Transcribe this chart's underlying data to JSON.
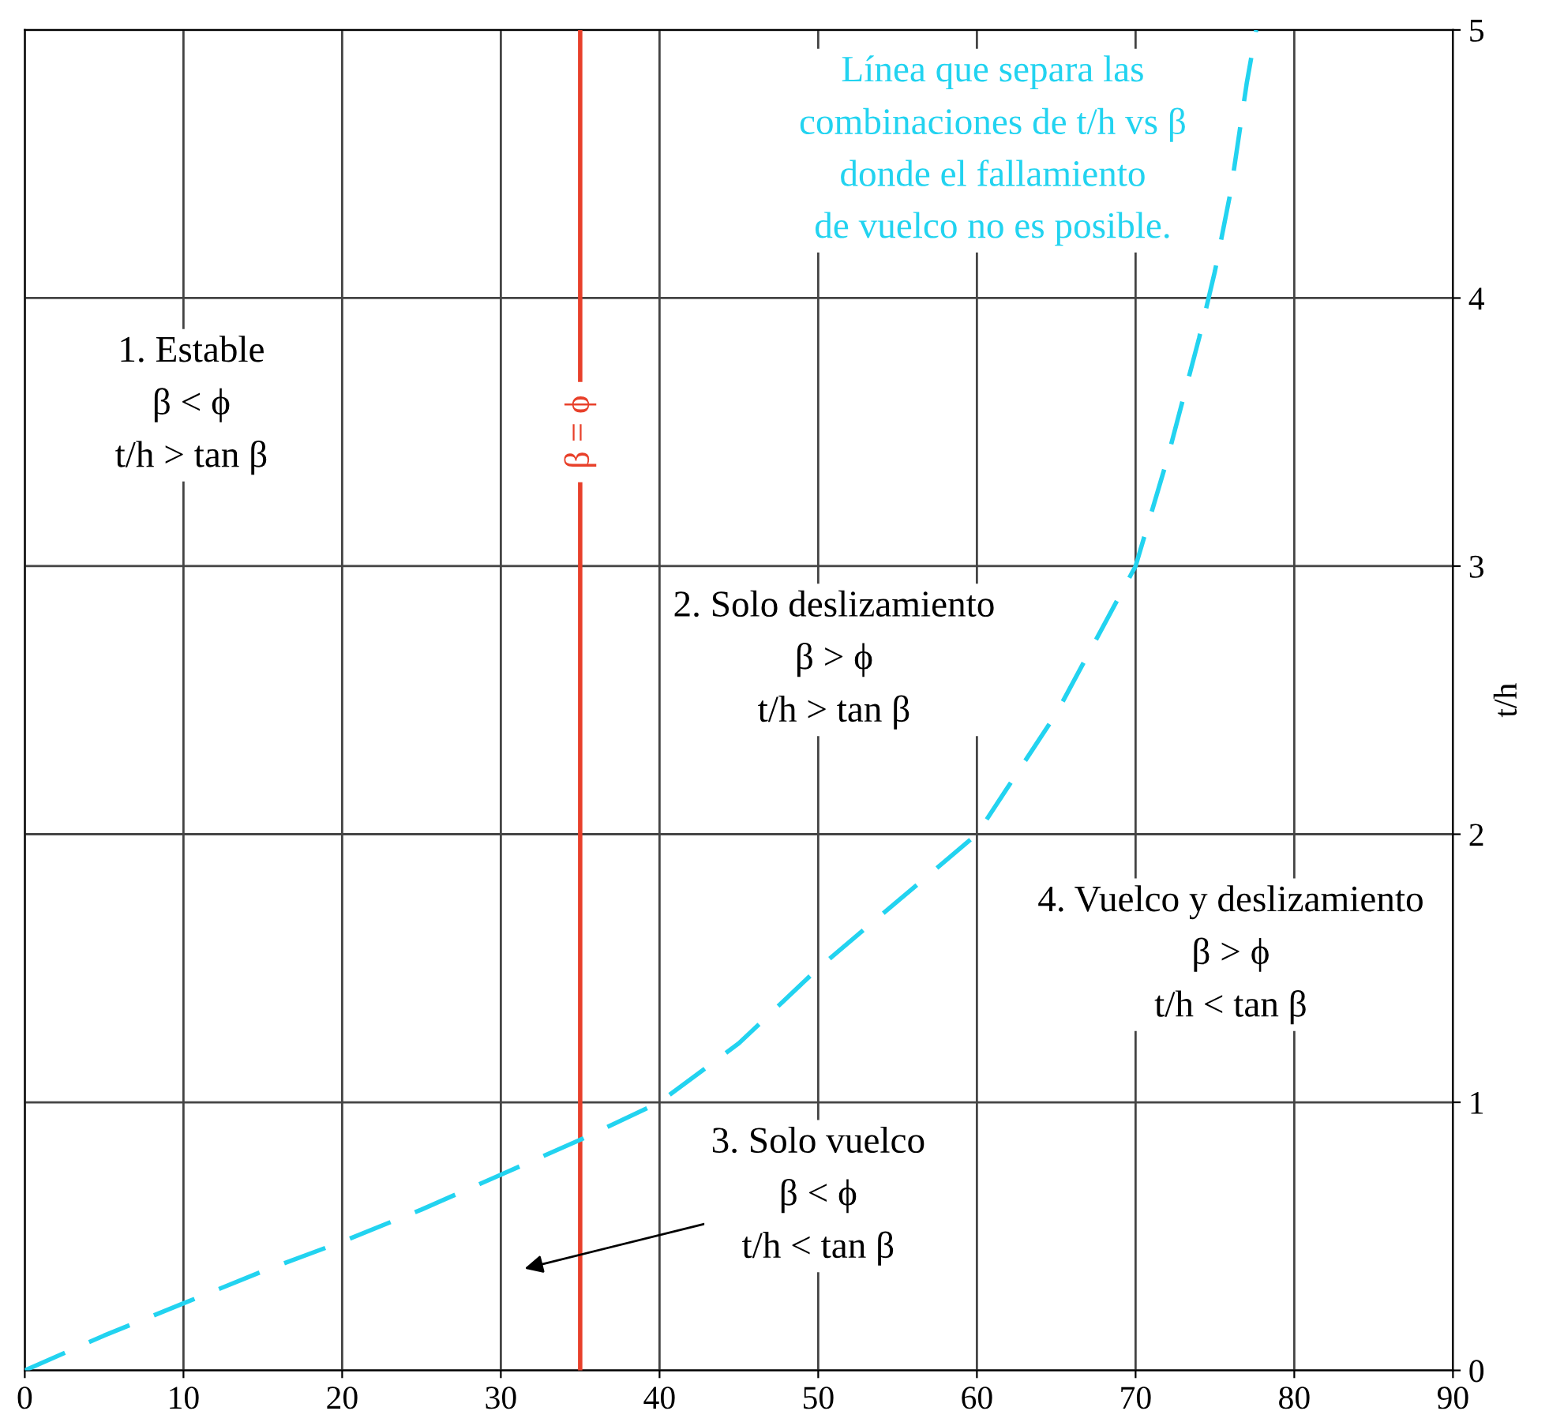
{
  "chart_data": {
    "type": "line",
    "ylabel": "t/h",
    "x": [
      0,
      5,
      10,
      15,
      20,
      25,
      30,
      35,
      40,
      45,
      50,
      55,
      60,
      65,
      70,
      72,
      74,
      75,
      76,
      77,
      77.6
    ],
    "series": [
      {
        "color": "#22d3f0",
        "values": [
          0,
          0.13,
          0.25,
          0.37,
          0.48,
          0.6,
          0.73,
          0.86,
          1.0,
          1.22,
          1.5,
          1.75,
          2.0,
          2.45,
          3.0,
          3.4,
          3.85,
          4.1,
          4.4,
          4.8,
          5.0
        ]
      }
    ],
    "line_style": "dashed",
    "marker": "none",
    "xlim": [
      0,
      90
    ],
    "xticks": [
      0,
      10,
      20,
      30,
      40,
      50,
      60,
      70,
      80,
      90
    ],
    "ylim": [
      0,
      5
    ],
    "yticks": [
      0,
      1,
      2,
      3,
      4,
      5
    ],
    "grid": true,
    "ref_lines": [
      {
        "axis": "x",
        "value": 35,
        "label": "β = ϕ",
        "color": "#e8402a"
      }
    ],
    "annotations": [
      {
        "text": "1. Estable\nβ < ϕ\nt/h > tan β"
      },
      {
        "text": "2. Solo deslizamiento\nβ > ϕ\nt/h > tan β"
      },
      {
        "text": "3. Solo vuelco\nβ < ϕ\nt/h < tan β"
      },
      {
        "text": "4. Vuelco y deslizamiento\nβ > ϕ\nt/h < tan β"
      },
      {
        "text": "Línea que separa las\ncombinaciones de t/h vs β\ndonde el fallamiento\nde vuelco no es posible."
      }
    ]
  }
}
